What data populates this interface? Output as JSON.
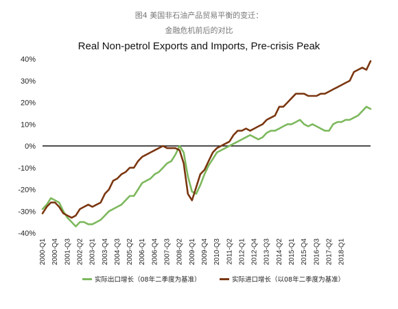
{
  "caption": {
    "line1": "图4 美国非石油产品贸易平衡的变迁：",
    "line2": "金融危机前后的对比"
  },
  "chart_data": {
    "type": "line",
    "title": "Real Non-petrol Exports and Imports, Pre-crisis Peak",
    "ylim": [
      -40,
      40
    ],
    "y_ticks": [
      "40%",
      "30%",
      "20%",
      "10%",
      "0%",
      "-10%",
      "-20%",
      "-30%",
      "-40%"
    ],
    "x_tick_labels": [
      "2000-Q1",
      "2000-Q4",
      "2001-Q3",
      "2002-Q2",
      "2003-Q1",
      "2003-Q4",
      "2004-Q3",
      "2005-Q2",
      "2006-Q1",
      "2006-Q4",
      "2007-Q3",
      "2008-Q2",
      "2009-Q1",
      "2009-Q4",
      "2010-Q3",
      "2011-Q2",
      "2012-Q1",
      "2012-Q4",
      "2013-Q3",
      "2014-Q2",
      "2015-Q1",
      "2015-Q4",
      "2016-Q3",
      "2017-Q2",
      "2018-Q1"
    ],
    "legend_position": "bottom",
    "series": [
      {
        "name": "实际出口增长（08年二季度为基准）",
        "color": "#7cb85c",
        "values": [
          -29,
          -27,
          -24,
          -25,
          -26,
          -30,
          -33,
          -35,
          -37,
          -35,
          -35,
          -36,
          -36,
          -35,
          -34,
          -32,
          -30,
          -29,
          -28,
          -27,
          -25,
          -23,
          -23,
          -20,
          -17,
          -16,
          -15,
          -13,
          -12,
          -10,
          -8,
          -7,
          -4,
          0,
          -3,
          -14,
          -21,
          -22,
          -18,
          -13,
          -9,
          -6,
          -3,
          -2,
          -1,
          0,
          1,
          2,
          3,
          4,
          5,
          4,
          3,
          4,
          6,
          7,
          7,
          8,
          9,
          10,
          10,
          11,
          12,
          10,
          9,
          10,
          9,
          8,
          7,
          7,
          10,
          11,
          11,
          12,
          12,
          13,
          14,
          16,
          18,
          17
        ]
      },
      {
        "name": "实际进口增长（以08年二季度为基准）",
        "color": "#7a3610",
        "values": [
          -31,
          -28,
          -26,
          -26,
          -28,
          -31,
          -32,
          -33,
          -32,
          -29,
          -28,
          -27,
          -28,
          -27,
          -26,
          -22,
          -20,
          -16,
          -15,
          -13,
          -12,
          -10,
          -10,
          -7,
          -5,
          -4,
          -3,
          -2,
          -1,
          0,
          -1,
          -1,
          -1,
          -2,
          -8,
          -22,
          -25,
          -19,
          -13,
          -11,
          -7,
          -3,
          -1,
          0,
          1,
          2,
          5,
          7,
          7,
          8,
          7,
          8,
          9,
          10,
          12,
          13,
          14,
          18,
          18,
          20,
          22,
          24,
          24,
          24,
          23,
          23,
          23,
          24,
          24,
          25,
          26,
          27,
          28,
          29,
          30,
          34,
          35,
          36,
          35,
          39
        ]
      }
    ]
  }
}
